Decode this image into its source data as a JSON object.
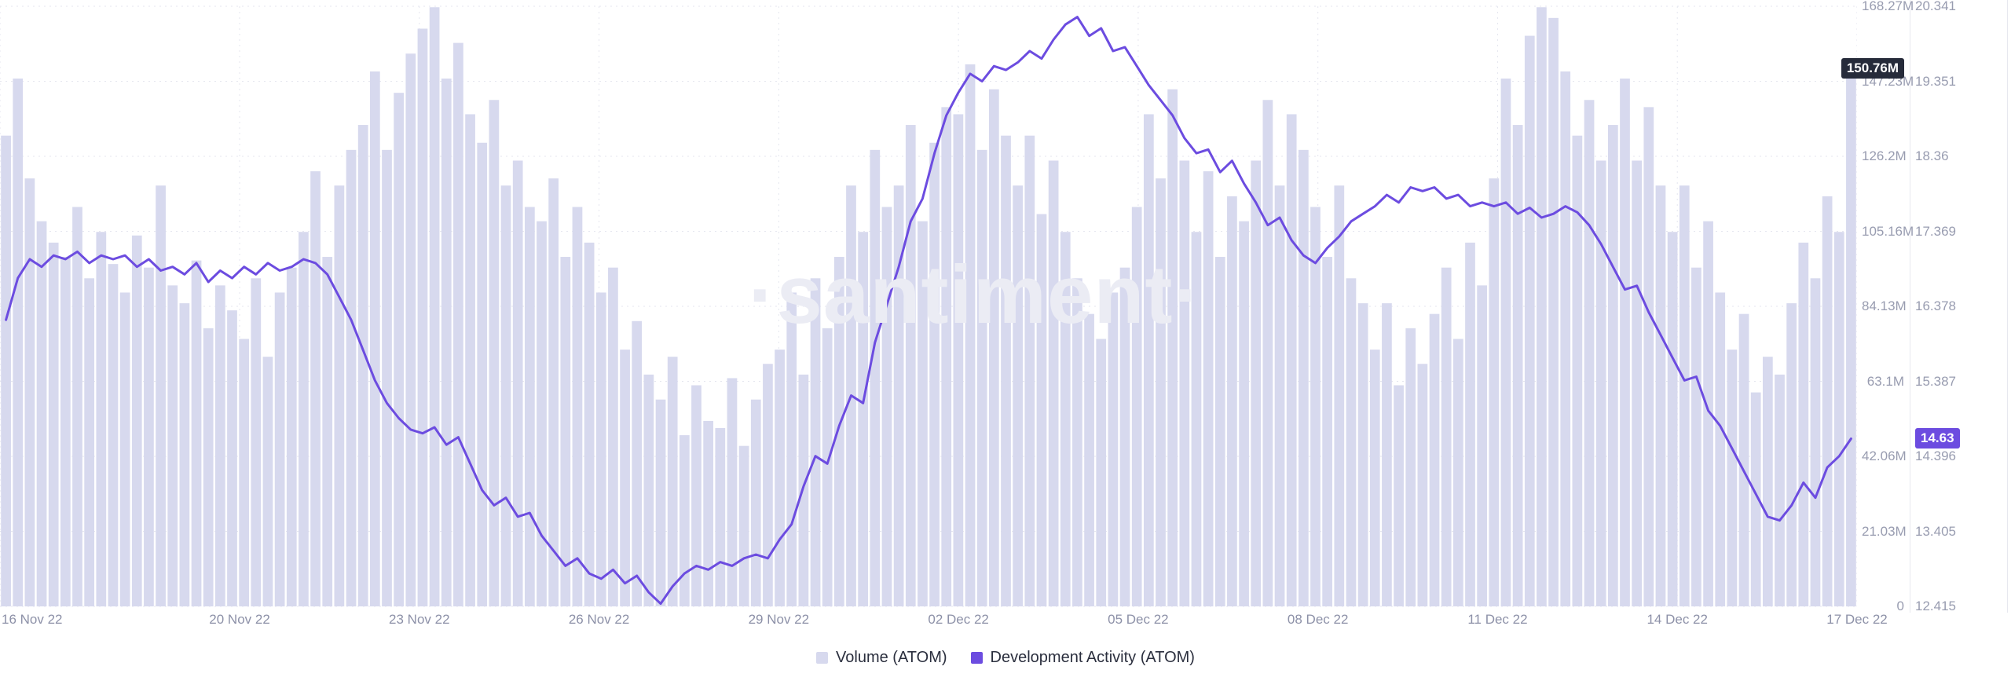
{
  "watermark_text": "·santiment·",
  "chart_data": {
    "type": "mixed",
    "watermark": "·santiment·",
    "grid": "dotted",
    "legend_position": "bottom-center",
    "x_total_days": 31,
    "x_ticks": [
      {
        "label": "16 Nov 22",
        "day": 0
      },
      {
        "label": "20 Nov 22",
        "day": 4
      },
      {
        "label": "23 Nov 22",
        "day": 7
      },
      {
        "label": "26 Nov 22",
        "day": 10
      },
      {
        "label": "29 Nov 22",
        "day": 13
      },
      {
        "label": "02 Dec 22",
        "day": 16
      },
      {
        "label": "05 Dec 22",
        "day": 19
      },
      {
        "label": "08 Dec 22",
        "day": 22
      },
      {
        "label": "11 Dec 22",
        "day": 25
      },
      {
        "label": "14 Dec 22",
        "day": 28
      },
      {
        "label": "17 Dec 22",
        "day": 31
      }
    ],
    "axes": {
      "volume": {
        "ticks": [
          "0",
          "21.03M",
          "42.06M",
          "63.1M",
          "84.13M",
          "105.16M",
          "126.2M",
          "147.23M",
          "168.27M"
        ],
        "min": 0,
        "max": 168.27,
        "current_label": "150.76M",
        "current_value": 150.76,
        "badge_color": "#262b3a"
      },
      "dev": {
        "ticks": [
          "12.415",
          "13.405",
          "14.396",
          "15.387",
          "16.378",
          "17.369",
          "18.36",
          "19.351",
          "20.341"
        ],
        "min": 12.415,
        "max": 20.341,
        "current_label": "14.63",
        "current_value": 14.63,
        "badge_color": "#6c4ce0"
      }
    },
    "series": [
      {
        "name": "Volume (ATOM)",
        "type": "bar",
        "axis": "volume",
        "unit": "M",
        "color": "#d7d9ee",
        "values": [
          132,
          148,
          120,
          108,
          102,
          98,
          112,
          92,
          105,
          96,
          88,
          104,
          95,
          118,
          90,
          85,
          97,
          78,
          90,
          83,
          75,
          92,
          70,
          88,
          95,
          105,
          122,
          98,
          118,
          128,
          135,
          150,
          128,
          144,
          155,
          162,
          168,
          148,
          158,
          138,
          130,
          142,
          118,
          125,
          112,
          108,
          120,
          98,
          112,
          102,
          88,
          95,
          72,
          80,
          65,
          58,
          70,
          48,
          62,
          52,
          50,
          64,
          45,
          58,
          68,
          72,
          88,
          65,
          92,
          78,
          98,
          118,
          105,
          128,
          112,
          118,
          135,
          108,
          130,
          140,
          138,
          152,
          128,
          145,
          132,
          118,
          132,
          110,
          125,
          105,
          92,
          82,
          75,
          88,
          95,
          112,
          138,
          120,
          145,
          125,
          105,
          122,
          98,
          115,
          108,
          125,
          142,
          118,
          138,
          128,
          112,
          98,
          118,
          92,
          85,
          72,
          85,
          62,
          78,
          68,
          82,
          95,
          75,
          102,
          90,
          120,
          148,
          135,
          160,
          168,
          165,
          150,
          132,
          142,
          125,
          135,
          148,
          125,
          140,
          118,
          105,
          118,
          95,
          108,
          88,
          72,
          82,
          60,
          70,
          65,
          85,
          102,
          92,
          115,
          105,
          150.76
        ]
      },
      {
        "name": "Development Activity (ATOM)",
        "type": "line",
        "axis": "dev",
        "color": "#6c4ce0",
        "values": [
          16.2,
          16.75,
          17.0,
          16.9,
          17.05,
          17.0,
          17.1,
          16.95,
          17.05,
          17.0,
          17.05,
          16.9,
          17.0,
          16.85,
          16.9,
          16.8,
          16.95,
          16.7,
          16.85,
          16.75,
          16.9,
          16.8,
          16.95,
          16.85,
          16.9,
          17.0,
          16.95,
          16.8,
          16.5,
          16.2,
          15.8,
          15.4,
          15.1,
          14.9,
          14.75,
          14.7,
          14.78,
          14.55,
          14.65,
          14.3,
          13.95,
          13.75,
          13.85,
          13.6,
          13.65,
          13.35,
          13.15,
          12.95,
          13.05,
          12.85,
          12.78,
          12.9,
          12.72,
          12.82,
          12.6,
          12.45,
          12.68,
          12.85,
          12.95,
          12.9,
          13.0,
          12.95,
          13.05,
          13.1,
          13.05,
          13.3,
          13.5,
          14.0,
          14.4,
          14.3,
          14.8,
          15.2,
          15.1,
          15.9,
          16.4,
          16.9,
          17.5,
          17.8,
          18.4,
          18.9,
          19.2,
          19.45,
          19.35,
          19.55,
          19.5,
          19.6,
          19.75,
          19.65,
          19.9,
          20.1,
          20.2,
          19.95,
          20.05,
          19.75,
          19.8,
          19.55,
          19.3,
          19.1,
          18.9,
          18.6,
          18.4,
          18.45,
          18.15,
          18.3,
          18.0,
          17.75,
          17.45,
          17.55,
          17.25,
          17.05,
          16.95,
          17.15,
          17.3,
          17.5,
          17.6,
          17.7,
          17.85,
          17.75,
          17.95,
          17.9,
          17.95,
          17.8,
          17.85,
          17.7,
          17.75,
          17.7,
          17.75,
          17.6,
          17.68,
          17.55,
          17.6,
          17.7,
          17.62,
          17.45,
          17.2,
          16.9,
          16.6,
          16.65,
          16.3,
          16.0,
          15.7,
          15.4,
          15.45,
          15.0,
          14.8,
          14.5,
          14.2,
          13.9,
          13.6,
          13.55,
          13.75,
          14.05,
          13.85,
          14.25,
          14.4,
          14.63
        ]
      }
    ],
    "legend": [
      {
        "label": "Volume (ATOM)",
        "color": "#d7d9ee"
      },
      {
        "label": "Development Activity (ATOM)",
        "color": "#6c4ce0"
      }
    ],
    "colors": {
      "grid": "#e5e6ef",
      "axis_text": "#989cb0",
      "x_axis_text": "#8d91a8",
      "watermark": "#ebecf4"
    }
  }
}
